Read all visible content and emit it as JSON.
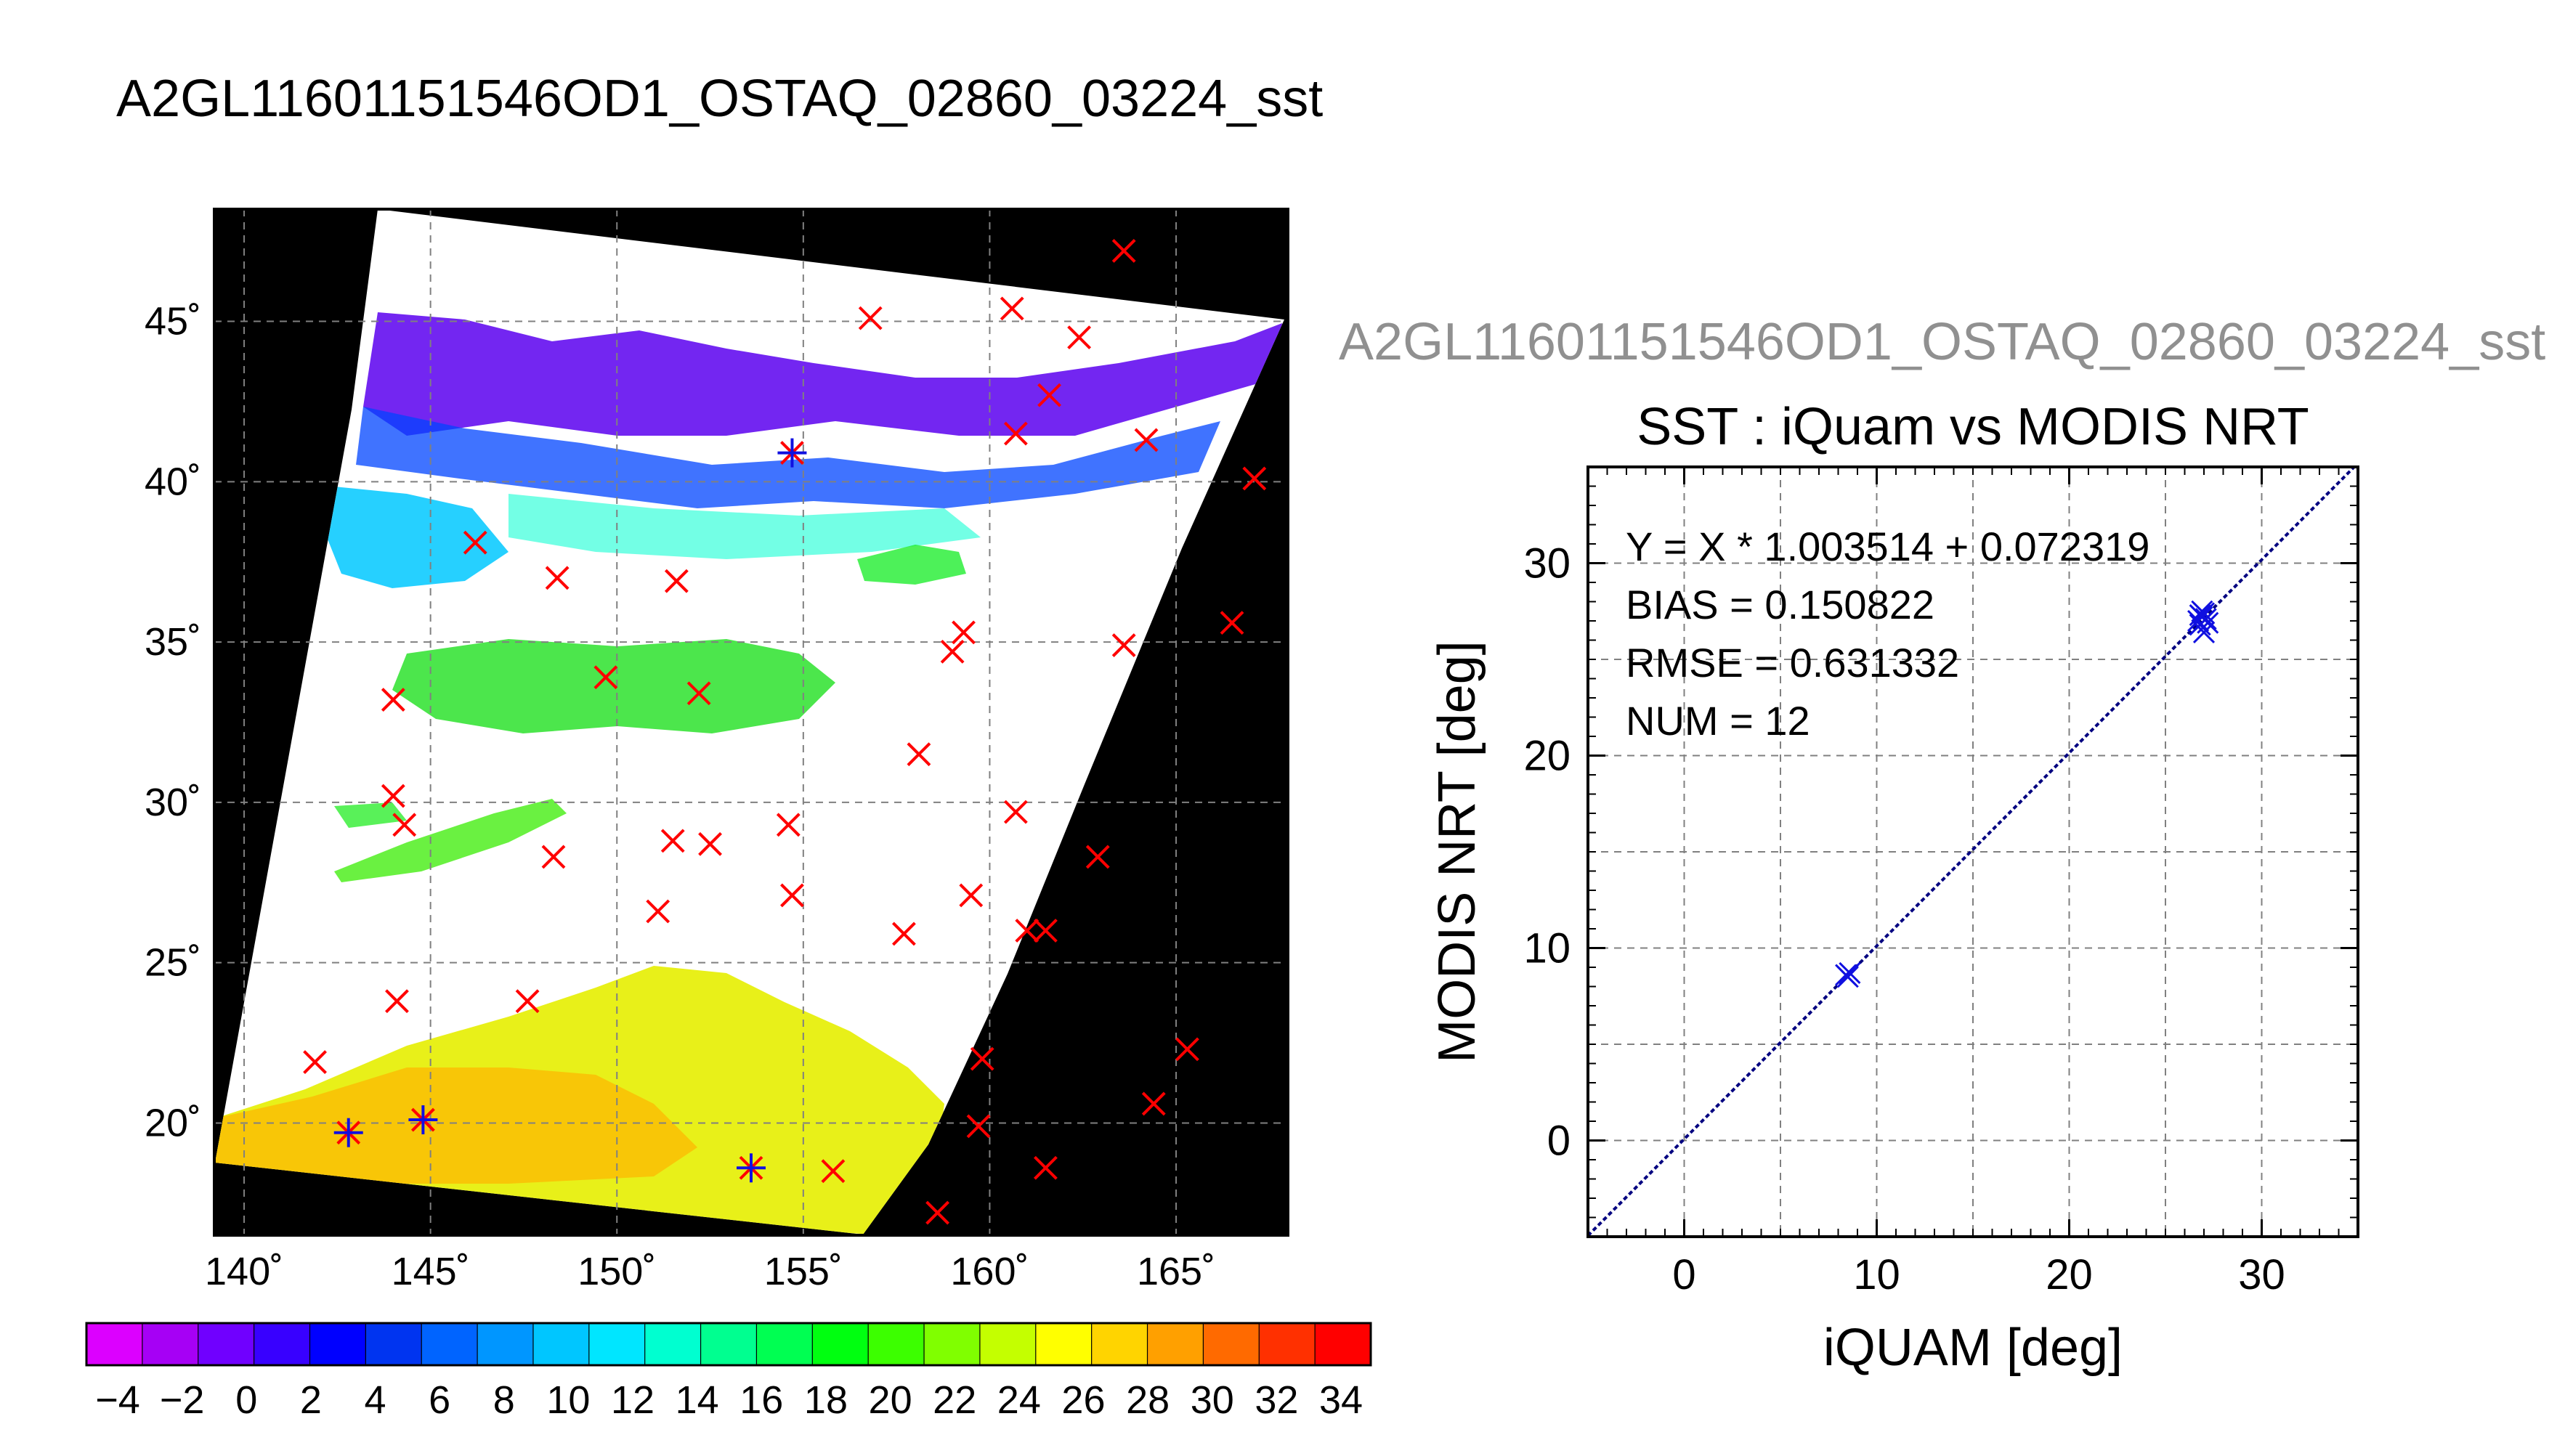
{
  "main_title": "A2GL11601151546OD1_OSTAQ_02860_03224_sst",
  "right_title": "A2GL11601151546OD1_OSTAQ_02860_03224_sst",
  "colors": {
    "land": "#000000",
    "grid": "#808080",
    "marker_red": "#ff0000",
    "marker_blue": "#1010e0",
    "fit_line": "#000080"
  },
  "chart_data": [
    {
      "type": "map",
      "lon_ticks": [
        140,
        145,
        150,
        155,
        160,
        165
      ],
      "lat_ticks": [
        20,
        25,
        30,
        35,
        40,
        45
      ],
      "lon_labels": [
        "140˚",
        "145˚",
        "150˚",
        "155˚",
        "160˚",
        "165˚"
      ],
      "lat_labels": [
        "20˚",
        "25˚",
        "30˚",
        "35˚",
        "40˚",
        "45˚"
      ],
      "lon_range": [
        139.2,
        168.0
      ],
      "lat_range": [
        16.5,
        48.5
      ],
      "grid": true,
      "markers_red": [
        [
          163.6,
          47.2
        ],
        [
          156.8,
          45.1
        ],
        [
          160.6,
          45.4
        ],
        [
          162.4,
          44.5
        ],
        [
          161.6,
          42.7
        ],
        [
          160.7,
          41.5
        ],
        [
          164.2,
          41.3
        ],
        [
          154.7,
          40.9
        ],
        [
          167.1,
          40.1
        ],
        [
          146.2,
          38.1
        ],
        [
          148.4,
          37.0
        ],
        [
          151.6,
          36.9
        ],
        [
          166.5,
          35.6
        ],
        [
          159.3,
          35.3
        ],
        [
          159.0,
          34.7
        ],
        [
          163.6,
          34.9
        ],
        [
          149.7,
          33.9
        ],
        [
          152.2,
          33.4
        ],
        [
          144.0,
          33.2
        ],
        [
          158.1,
          31.5
        ],
        [
          144.0,
          30.2
        ],
        [
          144.3,
          29.3
        ],
        [
          160.7,
          29.7
        ],
        [
          154.6,
          29.3
        ],
        [
          151.5,
          28.8
        ],
        [
          152.5,
          28.7
        ],
        [
          148.3,
          28.3
        ],
        [
          162.9,
          28.3
        ],
        [
          154.7,
          27.1
        ],
        [
          159.5,
          27.1
        ],
        [
          151.1,
          26.6
        ],
        [
          157.7,
          25.9
        ],
        [
          161.0,
          26.0
        ],
        [
          161.5,
          26.0
        ],
        [
          144.1,
          23.8
        ],
        [
          147.6,
          23.8
        ],
        [
          165.3,
          22.3
        ],
        [
          141.9,
          21.9
        ],
        [
          159.8,
          22.0
        ],
        [
          164.4,
          20.6
        ],
        [
          142.8,
          19.7
        ],
        [
          144.8,
          20.1
        ],
        [
          159.7,
          19.9
        ],
        [
          153.6,
          18.6
        ],
        [
          155.8,
          18.5
        ],
        [
          161.5,
          18.6
        ],
        [
          158.6,
          17.2
        ]
      ],
      "markers_blue": [
        [
          154.7,
          40.9
        ],
        [
          142.8,
          19.7
        ],
        [
          144.8,
          20.1
        ],
        [
          153.6,
          18.6
        ]
      ]
    },
    {
      "type": "colorbar",
      "tick_labels": [
        "−4",
        "−2",
        "0",
        "2",
        "4",
        "6",
        "8",
        "10",
        "12",
        "14",
        "16",
        "18",
        "20",
        "22",
        "24",
        "26",
        "28",
        "30",
        "32",
        "34"
      ],
      "colors": [
        "#dc00ff",
        "#a600f5",
        "#7000ff",
        "#3800ff",
        "#0000ff",
        "#0034f0",
        "#0064ff",
        "#0096ff",
        "#00c6ff",
        "#00e6ff",
        "#00ffd0",
        "#00ff90",
        "#00ff52",
        "#00ff10",
        "#3cff00",
        "#80ff00",
        "#c4ff00",
        "#ffff00",
        "#ffd400",
        "#ffa000",
        "#ff6a00",
        "#ff3000",
        "#ff0000"
      ]
    },
    {
      "type": "scatter",
      "title": "SST : iQuam vs MODIS NRT",
      "xlabel": "iQUAM [deg]",
      "ylabel": "MODIS NRT [deg]",
      "xlim": [
        -5,
        35
      ],
      "ylim": [
        -5,
        35
      ],
      "x_ticks": [
        0,
        10,
        20,
        30
      ],
      "y_ticks": [
        0,
        10,
        20,
        30
      ],
      "grid": true,
      "fit": {
        "slope": 1.003514,
        "intercept": 0.072319
      },
      "stats": [
        "Y = X * 1.003514 + 0.072319",
        "BIAS = 0.150822",
        "RMSE = 0.631332",
        "NUM = 12"
      ],
      "points": [
        {
          "x": 8.5,
          "y": 8.5
        },
        {
          "x": 8.6,
          "y": 8.7
        },
        {
          "x": 8.4,
          "y": 8.6
        },
        {
          "x": 26.8,
          "y": 27.3
        },
        {
          "x": 26.9,
          "y": 27.2
        },
        {
          "x": 27.0,
          "y": 27.4
        },
        {
          "x": 26.7,
          "y": 27.0
        },
        {
          "x": 27.1,
          "y": 27.1
        },
        {
          "x": 27.0,
          "y": 26.4
        },
        {
          "x": 26.9,
          "y": 27.5
        },
        {
          "x": 27.2,
          "y": 26.9
        },
        {
          "x": 26.8,
          "y": 26.8
        }
      ]
    }
  ]
}
